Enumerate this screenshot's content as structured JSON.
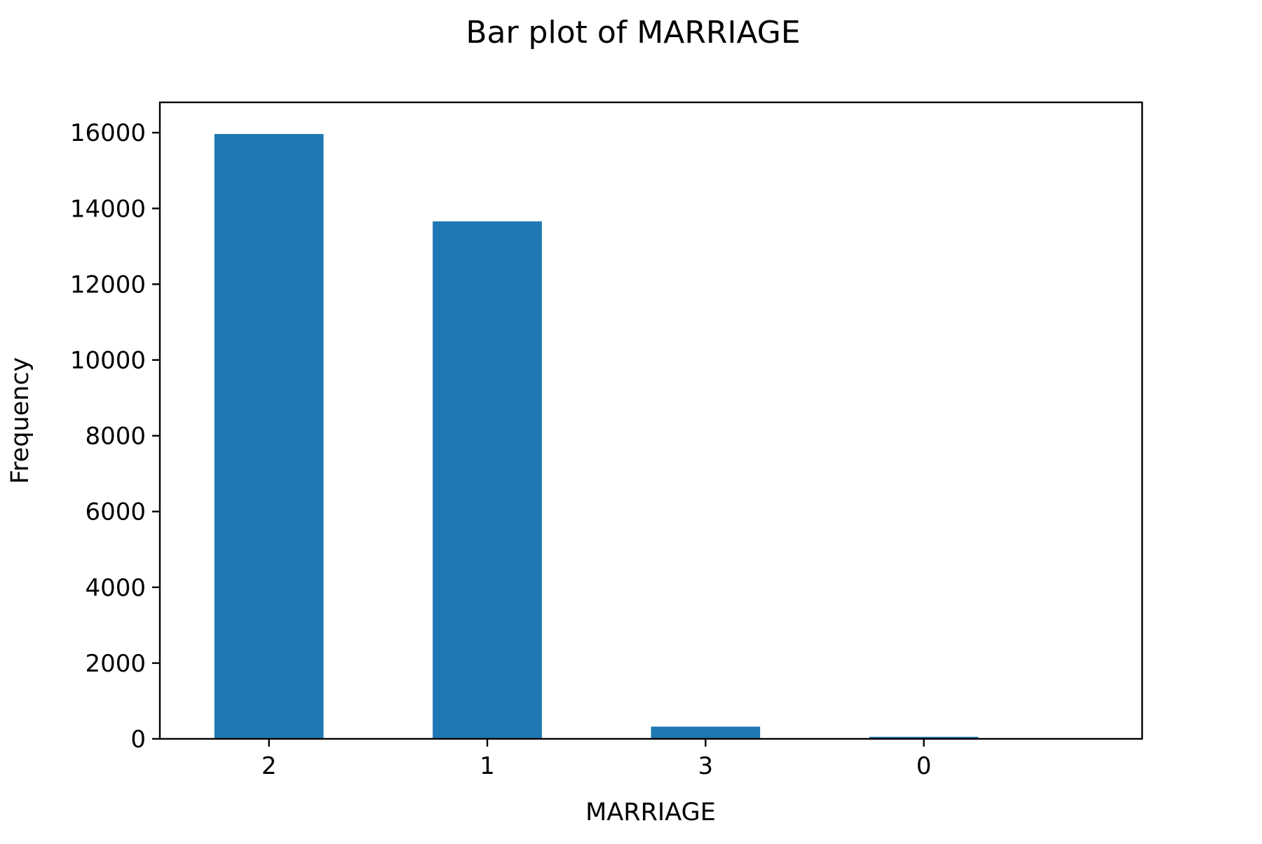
{
  "chart_data": {
    "type": "bar",
    "title": "Bar plot of MARRIAGE",
    "xlabel": "MARRIAGE",
    "ylabel": "Frequency",
    "categories": [
      "2",
      "1",
      "3",
      "0"
    ],
    "values": [
      15964,
      13659,
      323,
      54
    ],
    "ylim": [
      0,
      16800
    ],
    "yticks": [
      0,
      2000,
      4000,
      6000,
      8000,
      10000,
      12000,
      14000,
      16000
    ],
    "grid": false,
    "legend": "none",
    "bar_color": "#1f77b4"
  }
}
